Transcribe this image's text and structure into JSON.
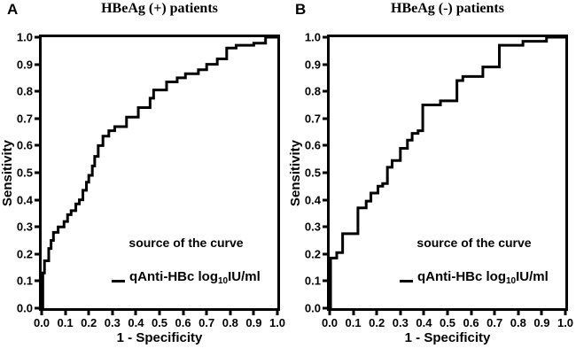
{
  "ui": {
    "panel_labels": [
      "A",
      "B"
    ],
    "legend_series_prefix": "qAnti-HBc log",
    "legend_series_subscript": "10",
    "legend_series_suffix": "IU/ml"
  },
  "chart_data": [
    {
      "type": "line",
      "subtype": "empirical-roc-step-curve",
      "panel": "A",
      "title": "HBeAg (+) patients",
      "xlabel": "1 - Specificity",
      "ylabel": "Sensitivity",
      "xlim": [
        0.0,
        1.0
      ],
      "ylim": [
        0.0,
        1.0
      ],
      "grid": false,
      "line_color": "#000000",
      "xticks": [
        0,
        0.1,
        0.2,
        0.3,
        0.4,
        0.5,
        0.6,
        0.7,
        0.8,
        0.9,
        1.0
      ],
      "xtick_labels": [
        "0.0",
        "0.1",
        "0.2",
        "0.3",
        "0.4",
        "0.5",
        "0.6",
        "0.7",
        "0.8",
        "0.9",
        "1.0"
      ],
      "yticks": [
        0,
        0.1,
        0.2,
        0.3,
        0.4,
        0.5,
        0.6,
        0.7,
        0.8,
        0.9,
        1.0
      ],
      "ytick_labels": [
        "0.0",
        "0.1",
        "0.2",
        "0.3",
        "0.4",
        "0.5",
        "0.6",
        "0.7",
        "0.8",
        "0.9",
        "1.0"
      ],
      "legend_position": "inside-lower-right",
      "legend_title": "source of the curve",
      "interpolation": "step-horizontal-then-vertical",
      "series": [
        {
          "name": "qAnti-HBc log10IU/ml",
          "points": [
            [
              0.0,
              0.0
            ],
            [
              0.005,
              0.13
            ],
            [
              0.012,
              0.175
            ],
            [
              0.03,
              0.22
            ],
            [
              0.04,
              0.25
            ],
            [
              0.05,
              0.28
            ],
            [
              0.07,
              0.3
            ],
            [
              0.095,
              0.32
            ],
            [
              0.11,
              0.345
            ],
            [
              0.125,
              0.36
            ],
            [
              0.145,
              0.385
            ],
            [
              0.16,
              0.4
            ],
            [
              0.175,
              0.435
            ],
            [
              0.19,
              0.465
            ],
            [
              0.2,
              0.49
            ],
            [
              0.215,
              0.525
            ],
            [
              0.225,
              0.56
            ],
            [
              0.24,
              0.6
            ],
            [
              0.26,
              0.635
            ],
            [
              0.285,
              0.655
            ],
            [
              0.31,
              0.67
            ],
            [
              0.36,
              0.705
            ],
            [
              0.41,
              0.74
            ],
            [
              0.46,
              0.775
            ],
            [
              0.475,
              0.805
            ],
            [
              0.53,
              0.835
            ],
            [
              0.575,
              0.85
            ],
            [
              0.61,
              0.865
            ],
            [
              0.665,
              0.88
            ],
            [
              0.7,
              0.9
            ],
            [
              0.745,
              0.92
            ],
            [
              0.785,
              0.96
            ],
            [
              0.825,
              0.97
            ],
            [
              0.9,
              0.978
            ],
            [
              0.95,
              1.0
            ],
            [
              1.0,
              1.0
            ]
          ]
        }
      ]
    },
    {
      "type": "line",
      "subtype": "empirical-roc-step-curve",
      "panel": "B",
      "title": "HBeAg (-) patients",
      "xlabel": "1 - Specificity",
      "ylabel": "Sensitivity",
      "xlim": [
        0.0,
        1.0
      ],
      "ylim": [
        0.0,
        1.0
      ],
      "grid": false,
      "line_color": "#000000",
      "xticks": [
        0,
        0.1,
        0.2,
        0.3,
        0.4,
        0.5,
        0.6,
        0.7,
        0.8,
        0.9,
        1.0
      ],
      "xtick_labels": [
        "0.0",
        "0.1",
        "0.2",
        "0.3",
        "0.4",
        "0.5",
        "0.6",
        "0.7",
        "0.8",
        "0.9",
        "1.0"
      ],
      "yticks": [
        0,
        0.1,
        0.2,
        0.3,
        0.4,
        0.5,
        0.6,
        0.7,
        0.8,
        0.9,
        1.0
      ],
      "ytick_labels": [
        "0.0",
        "0.1",
        "0.2",
        "0.3",
        "0.4",
        "0.5",
        "0.6",
        "0.7",
        "0.8",
        "0.9",
        "1.0"
      ],
      "legend_position": "inside-lower-right",
      "legend_title": "source of the curve",
      "interpolation": "step-horizontal-then-vertical",
      "series": [
        {
          "name": "qAnti-HBc log10IU/ml",
          "points": [
            [
              0.0,
              0.0
            ],
            [
              0.004,
              0.185
            ],
            [
              0.03,
              0.205
            ],
            [
              0.055,
              0.275
            ],
            [
              0.12,
              0.37
            ],
            [
              0.155,
              0.395
            ],
            [
              0.175,
              0.425
            ],
            [
              0.205,
              0.45
            ],
            [
              0.225,
              0.46
            ],
            [
              0.245,
              0.52
            ],
            [
              0.265,
              0.545
            ],
            [
              0.3,
              0.59
            ],
            [
              0.33,
              0.62
            ],
            [
              0.35,
              0.645
            ],
            [
              0.375,
              0.655
            ],
            [
              0.395,
              0.75
            ],
            [
              0.47,
              0.765
            ],
            [
              0.54,
              0.84
            ],
            [
              0.565,
              0.855
            ],
            [
              0.65,
              0.89
            ],
            [
              0.72,
              0.97
            ],
            [
              0.82,
              0.985
            ],
            [
              0.92,
              1.0
            ],
            [
              1.0,
              1.0
            ]
          ]
        }
      ]
    }
  ]
}
